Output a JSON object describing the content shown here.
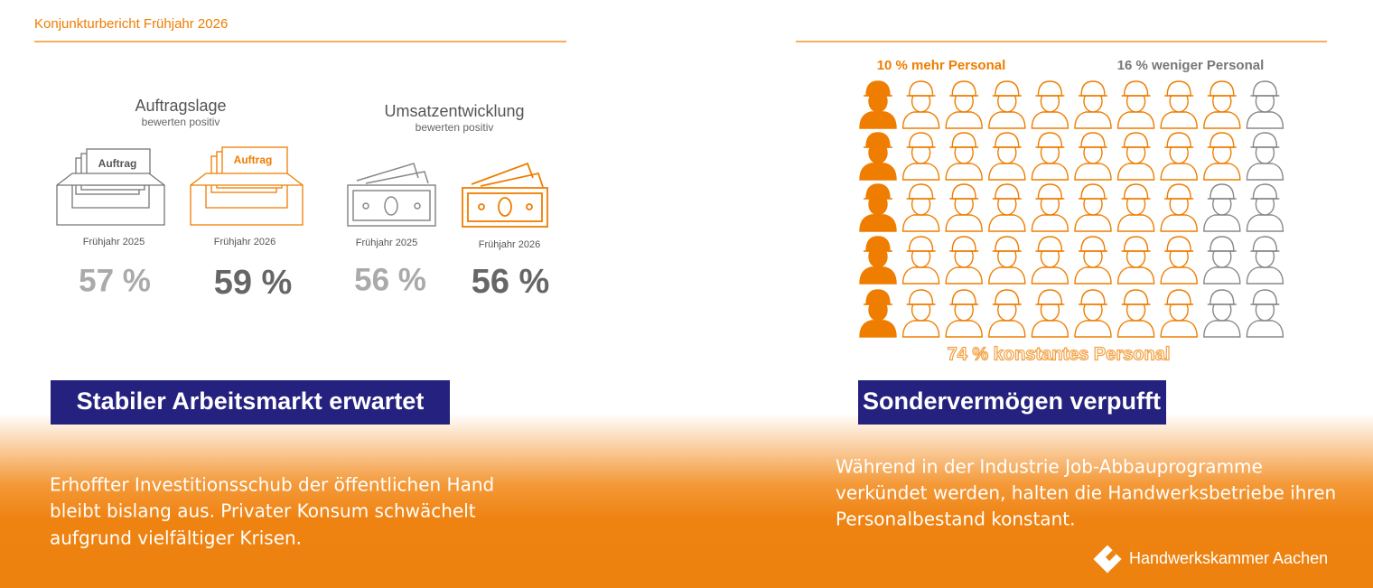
{
  "header": {
    "title": "Konjunkturbericht Frühjahr 2026"
  },
  "left": {
    "auftragslage": {
      "title": "Auftragslage",
      "subtitle": "bewerten positiv",
      "card_label": "Auftrag",
      "items": [
        {
          "period": "Frühjahr 2025",
          "share": "57 %"
        },
        {
          "period": "Frühjahr 2026",
          "share": "59 %"
        }
      ]
    },
    "umsatz": {
      "title": "Umsatzentwicklung",
      "subtitle": "bewerten positiv",
      "items": [
        {
          "period": "Frühjahr 2025",
          "share": "56 %"
        },
        {
          "period": "Frühjahr 2026",
          "share": "56 %"
        }
      ]
    },
    "heading": "Stabiler Arbeitsmarkt erwartet",
    "body": [
      "Erhoffter Investitionsschub der öffentlichen Hand",
      "bleibt bislang aus. Privater Konsum schwächelt",
      "aufgrund vielfältiger Krisen."
    ]
  },
  "right": {
    "more": "10 % mehr Personal",
    "less": "16 % weniger Personal",
    "constant": "74 % konstantes Personal",
    "heading": "Sondervermögen verpufft",
    "body": [
      "Während in der Industrie Job-Abbauprogramme",
      "verkündet werden, halten die Handwerksbetriebe ihren",
      "Personalbestand konstant."
    ]
  },
  "footer": {
    "logo": "Handwerkskammer Aachen"
  }
}
